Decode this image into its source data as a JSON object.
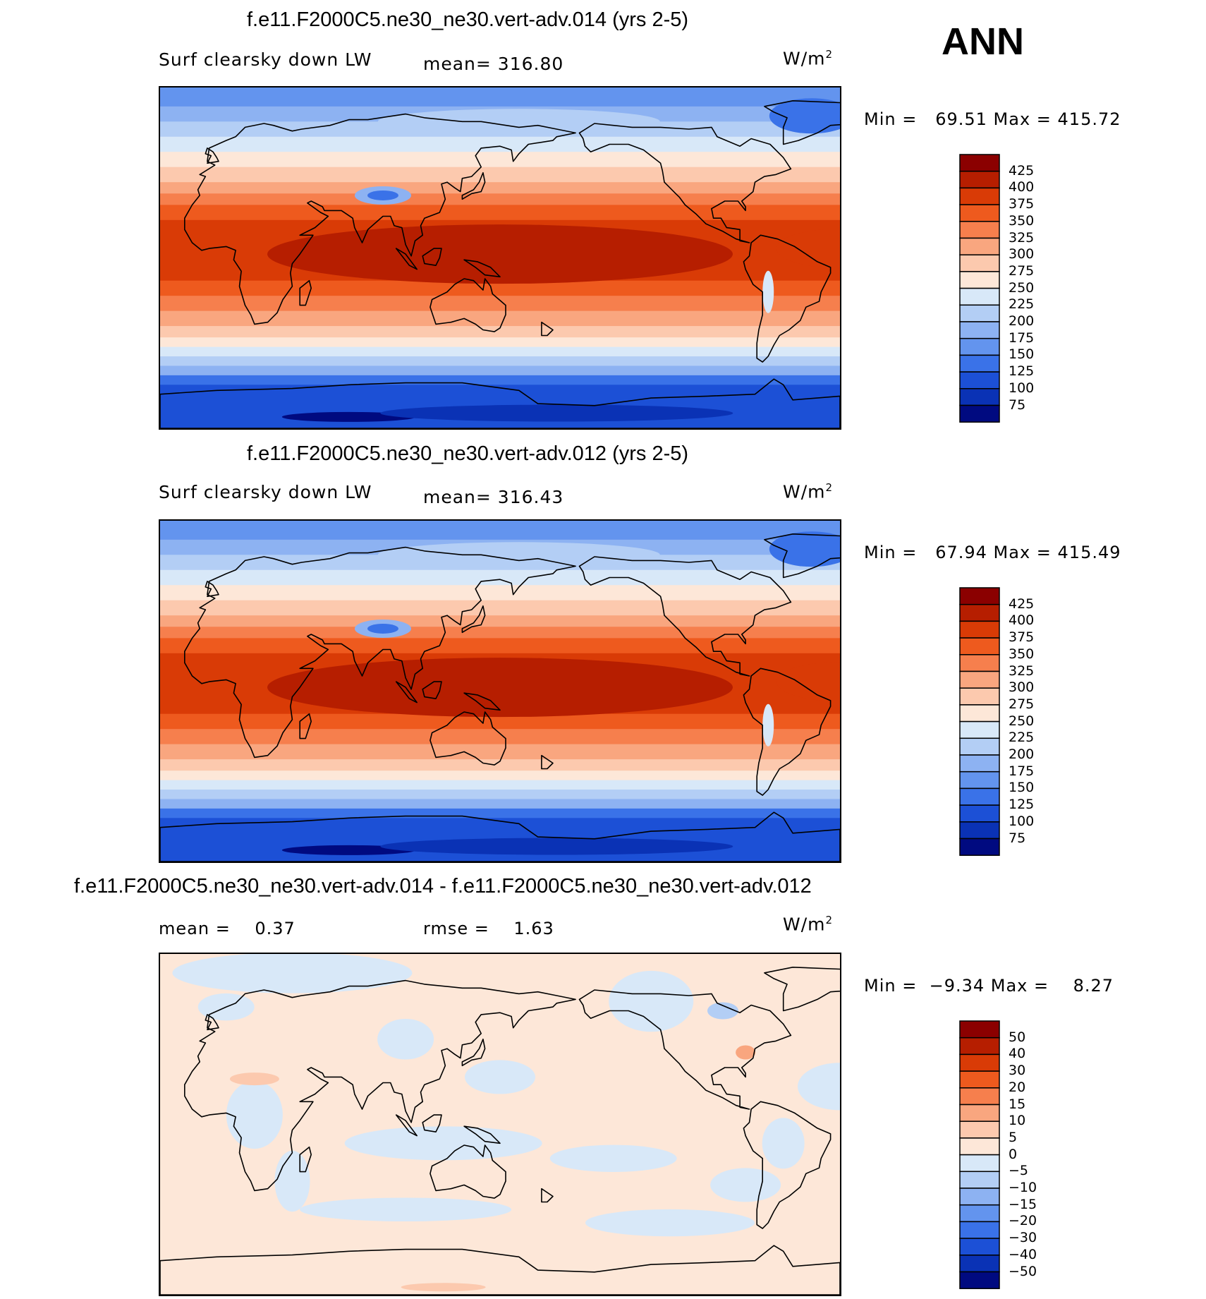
{
  "season": "ANN",
  "panels": [
    {
      "title": "f.e11.F2000C5.ne30_ne30.vert-adv.014 (yrs 2-5)",
      "left_text": "Surf clearsky down LW",
      "center_text": "mean= 316.80",
      "units": "W/m",
      "units_sup": "2",
      "minmax": "Min =   69.51 Max = 415.72",
      "kind": "abs"
    },
    {
      "title": "f.e11.F2000C5.ne30_ne30.vert-adv.012 (yrs 2-5)",
      "left_text": "Surf clearsky down LW",
      "center_text": "mean= 316.43",
      "units": "W/m",
      "units_sup": "2",
      "minmax": "Min =   67.94 Max = 415.49",
      "kind": "abs"
    },
    {
      "title": "f.e11.F2000C5.ne30_ne30.vert-adv.014 - f.e11.F2000C5.ne30_ne30.vert-adv.012",
      "left_text": "mean =    0.37",
      "center_text": "rmse =    1.63",
      "units": "W/m",
      "units_sup": "2",
      "minmax": "Min =  −9.34 Max =    8.27",
      "kind": "diff"
    }
  ],
  "colorbars": {
    "abs": {
      "labels": [
        "425",
        "400",
        "375",
        "350",
        "325",
        "300",
        "275",
        "250",
        "225",
        "200",
        "175",
        "150",
        "125",
        "100",
        "75"
      ],
      "colors": [
        "#8b0000",
        "#b61e00",
        "#d93b06",
        "#ee5a1e",
        "#f67f4d",
        "#f9a67f",
        "#fcc9ae",
        "#fde7d8",
        "#d8e8f8",
        "#b3cef5",
        "#8db2f2",
        "#6394ee",
        "#3a72e8",
        "#1c50d6",
        "#0a32b5",
        "#000a80"
      ]
    },
    "diff": {
      "labels": [
        "50",
        "40",
        "30",
        "20",
        "15",
        "10",
        "5",
        "0",
        "−5",
        "−10",
        "−15",
        "−20",
        "−30",
        "−40",
        "−50"
      ],
      "colors": [
        "#8b0000",
        "#b61e00",
        "#d93b06",
        "#ee5a1e",
        "#f67f4d",
        "#f9a67f",
        "#fcc9ae",
        "#fde7d8",
        "#d8e8f8",
        "#b3cef5",
        "#8db2f2",
        "#6394ee",
        "#3a72e8",
        "#1c50d6",
        "#0a32b5",
        "#000a80"
      ]
    }
  }
}
